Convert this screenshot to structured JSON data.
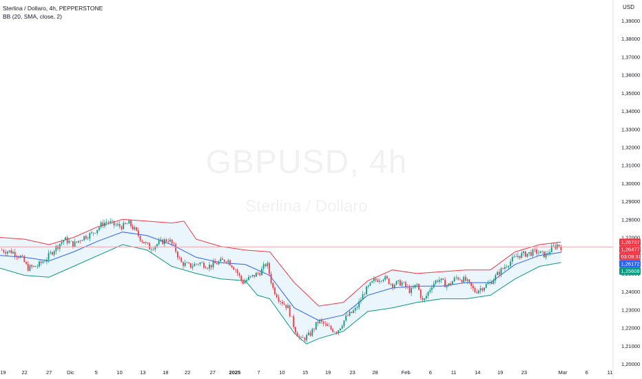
{
  "legend": {
    "title": "Sterlina / Dollaro, 4h, PEPPERSTONE",
    "indicator": "BB (20, SMA, close, 2)"
  },
  "currency": "USD",
  "watermark": {
    "symbol": "GBPUSD, 4h",
    "name": "Sterlina / Dollaro"
  },
  "colors": {
    "up": "#089981",
    "down": "#f23645",
    "bb_upper": "#f23645",
    "bb_basis": "#2962ff",
    "bb_lower": "#089981",
    "bb_fill": "#e8f3fb",
    "price_line": "#f7a1a7"
  },
  "chart_data": {
    "type": "candlestick",
    "ylim": [
      1.2,
      1.39
    ],
    "y_ticks": [
      "1,20000",
      "1,21000",
      "1,22000",
      "1,23000",
      "1,24000",
      "1,25000",
      "1,26000",
      "1,27000",
      "1,28000",
      "1,29000",
      "1,30000",
      "1,31000",
      "1,32000",
      "1,33000",
      "1,34000",
      "1,35000",
      "1,36000",
      "1,37000",
      "1,38000",
      "1,39000"
    ],
    "x_ticks": [
      {
        "label": "19",
        "pos": 0.005
      },
      {
        "label": "22",
        "pos": 0.04
      },
      {
        "label": "27",
        "pos": 0.08
      },
      {
        "label": "Dic",
        "pos": 0.115
      },
      {
        "label": "5",
        "pos": 0.157
      },
      {
        "label": "10",
        "pos": 0.195
      },
      {
        "label": "13",
        "pos": 0.233
      },
      {
        "label": "18",
        "pos": 0.27
      },
      {
        "label": "22",
        "pos": 0.306
      },
      {
        "label": "27",
        "pos": 0.347
      },
      {
        "label": "2025",
        "pos": 0.383,
        "bold": true
      },
      {
        "label": "7",
        "pos": 0.422
      },
      {
        "label": "10",
        "pos": 0.46
      },
      {
        "label": "15",
        "pos": 0.498
      },
      {
        "label": "19",
        "pos": 0.535
      },
      {
        "label": "23",
        "pos": 0.575
      },
      {
        "label": "28",
        "pos": 0.612
      },
      {
        "label": "Feb",
        "pos": 0.662
      },
      {
        "label": "6",
        "pos": 0.702
      },
      {
        "label": "11",
        "pos": 0.74
      },
      {
        "label": "14",
        "pos": 0.779
      },
      {
        "label": "19",
        "pos": 0.816
      },
      {
        "label": "23",
        "pos": 0.855
      },
      {
        "label": "Mar",
        "pos": 0.918
      },
      {
        "label": "6",
        "pos": 0.957
      },
      {
        "label": "11",
        "pos": 0.995
      }
    ],
    "price_path": [
      [
        0.0,
        1.263
      ],
      [
        0.02,
        1.262
      ],
      [
        0.035,
        1.259
      ],
      [
        0.045,
        1.253
      ],
      [
        0.06,
        1.254
      ],
      [
        0.075,
        1.258
      ],
      [
        0.09,
        1.264
      ],
      [
        0.105,
        1.269
      ],
      [
        0.12,
        1.266
      ],
      [
        0.135,
        1.27
      ],
      [
        0.15,
        1.272
      ],
      [
        0.165,
        1.277
      ],
      [
        0.175,
        1.279
      ],
      [
        0.185,
        1.277
      ],
      [
        0.2,
        1.276
      ],
      [
        0.21,
        1.278
      ],
      [
        0.22,
        1.274
      ],
      [
        0.23,
        1.269
      ],
      [
        0.245,
        1.264
      ],
      [
        0.26,
        1.267
      ],
      [
        0.275,
        1.269
      ],
      [
        0.285,
        1.264
      ],
      [
        0.295,
        1.256
      ],
      [
        0.31,
        1.254
      ],
      [
        0.325,
        1.256
      ],
      [
        0.34,
        1.254
      ],
      [
        0.355,
        1.256
      ],
      [
        0.37,
        1.258
      ],
      [
        0.385,
        1.252
      ],
      [
        0.395,
        1.245
      ],
      [
        0.41,
        1.248
      ],
      [
        0.425,
        1.251
      ],
      [
        0.435,
        1.256
      ],
      [
        0.445,
        1.242
      ],
      [
        0.455,
        1.236
      ],
      [
        0.47,
        1.231
      ],
      [
        0.48,
        1.22
      ],
      [
        0.49,
        1.213
      ],
      [
        0.505,
        1.216
      ],
      [
        0.52,
        1.224
      ],
      [
        0.535,
        1.22
      ],
      [
        0.55,
        1.218
      ],
      [
        0.565,
        1.226
      ],
      [
        0.58,
        1.23
      ],
      [
        0.595,
        1.24
      ],
      [
        0.61,
        1.246
      ],
      [
        0.625,
        1.248
      ],
      [
        0.64,
        1.244
      ],
      [
        0.655,
        1.245
      ],
      [
        0.67,
        1.24
      ],
      [
        0.68,
        1.244
      ],
      [
        0.69,
        1.234
      ],
      [
        0.705,
        1.244
      ],
      [
        0.715,
        1.247
      ],
      [
        0.73,
        1.243
      ],
      [
        0.745,
        1.248
      ],
      [
        0.76,
        1.246
      ],
      [
        0.775,
        1.24
      ],
      [
        0.785,
        1.242
      ],
      [
        0.8,
        1.245
      ],
      [
        0.815,
        1.251
      ],
      [
        0.83,
        1.256
      ],
      [
        0.845,
        1.26
      ],
      [
        0.86,
        1.261
      ],
      [
        0.875,
        1.262
      ],
      [
        0.89,
        1.26
      ],
      [
        0.9,
        1.264
      ],
      [
        0.91,
        1.266
      ],
      [
        0.915,
        1.2648
      ]
    ],
    "bb_basis": [
      [
        0.0,
        1.26
      ],
      [
        0.04,
        1.259
      ],
      [
        0.08,
        1.257
      ],
      [
        0.12,
        1.262
      ],
      [
        0.16,
        1.268
      ],
      [
        0.2,
        1.273
      ],
      [
        0.24,
        1.271
      ],
      [
        0.28,
        1.266
      ],
      [
        0.32,
        1.259
      ],
      [
        0.36,
        1.256
      ],
      [
        0.4,
        1.255
      ],
      [
        0.44,
        1.249
      ],
      [
        0.48,
        1.231
      ],
      [
        0.52,
        1.224
      ],
      [
        0.56,
        1.227
      ],
      [
        0.6,
        1.238
      ],
      [
        0.64,
        1.242
      ],
      [
        0.68,
        1.243
      ],
      [
        0.72,
        1.243
      ],
      [
        0.76,
        1.245
      ],
      [
        0.8,
        1.245
      ],
      [
        0.84,
        1.255
      ],
      [
        0.88,
        1.26
      ],
      [
        0.915,
        1.2617
      ]
    ],
    "bb_upper": [
      [
        0.0,
        1.27
      ],
      [
        0.04,
        1.269
      ],
      [
        0.08,
        1.266
      ],
      [
        0.12,
        1.27
      ],
      [
        0.16,
        1.276
      ],
      [
        0.2,
        1.28
      ],
      [
        0.24,
        1.279
      ],
      [
        0.28,
        1.278
      ],
      [
        0.3,
        1.279
      ],
      [
        0.32,
        1.269
      ],
      [
        0.36,
        1.265
      ],
      [
        0.4,
        1.263
      ],
      [
        0.44,
        1.262
      ],
      [
        0.48,
        1.245
      ],
      [
        0.52,
        1.232
      ],
      [
        0.56,
        1.234
      ],
      [
        0.6,
        1.246
      ],
      [
        0.64,
        1.252
      ],
      [
        0.68,
        1.25
      ],
      [
        0.72,
        1.251
      ],
      [
        0.76,
        1.252
      ],
      [
        0.8,
        1.252
      ],
      [
        0.84,
        1.262
      ],
      [
        0.88,
        1.266
      ],
      [
        0.915,
        1.2674
      ]
    ],
    "bb_lower": [
      [
        0.0,
        1.253
      ],
      [
        0.04,
        1.249
      ],
      [
        0.08,
        1.248
      ],
      [
        0.12,
        1.254
      ],
      [
        0.16,
        1.26
      ],
      [
        0.2,
        1.266
      ],
      [
        0.24,
        1.263
      ],
      [
        0.28,
        1.254
      ],
      [
        0.32,
        1.25
      ],
      [
        0.36,
        1.247
      ],
      [
        0.4,
        1.246
      ],
      [
        0.42,
        1.238
      ],
      [
        0.44,
        1.236
      ],
      [
        0.48,
        1.217
      ],
      [
        0.5,
        1.211
      ],
      [
        0.52,
        1.214
      ],
      [
        0.56,
        1.218
      ],
      [
        0.6,
        1.229
      ],
      [
        0.64,
        1.231
      ],
      [
        0.68,
        1.234
      ],
      [
        0.72,
        1.236
      ],
      [
        0.76,
        1.236
      ],
      [
        0.8,
        1.238
      ],
      [
        0.84,
        1.247
      ],
      [
        0.88,
        1.254
      ],
      [
        0.915,
        1.2561
      ]
    ],
    "badges": [
      {
        "label": "1,26737",
        "value": 1.26737,
        "color": "#f23645"
      },
      {
        "label": "1,26477",
        "value": 1.26477,
        "color": "#f23645"
      },
      {
        "label": "03:08:31",
        "value": 1.2632,
        "color": "#f23645"
      },
      {
        "label": "1,26172",
        "value": 1.26172,
        "color": "#2962ff"
      },
      {
        "label": "1,25608",
        "value": 1.25608,
        "color": "#089981"
      }
    ],
    "last_price": 1.26477
  }
}
